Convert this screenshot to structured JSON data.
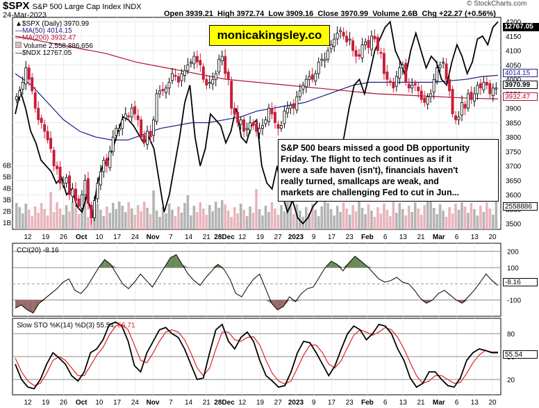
{
  "header": {
    "symbol": "$SPX",
    "name": "S&P 500 Large Cap Index  INDX",
    "date": "24-Mar-2023",
    "ohlc": "Open 3939.21  High 3972.74  Low 3909.16  Close 3970.99  Volume 2.6B  Chg +22.27 (+0.56%)",
    "watermark": "© StockCharts.com",
    "triangle": "▲"
  },
  "legend": [
    {
      "text": "$SPX (Daily) 3970.99",
      "color": "#000000"
    },
    {
      "text": "MA(50) 4014.15",
      "color": "#1a1a8c"
    },
    {
      "text": "MA(200) 3932.47",
      "color": "#b01030"
    },
    {
      "text": "Volume 2,558,886,656",
      "color": "#000000"
    },
    {
      "text": "$NDX 12767.05",
      "color": "#000000"
    }
  ],
  "brand": "monicakingsley.co",
  "annotation": "S&P 500 bears missed a good DB opportunity Friday. The flight to tech continues as if it were a safe haven (isn't), financials haven't really turned, smallcaps are weak, and markets are challenging Fed to cut in Jun...",
  "annotation_lines": [
    "S&P 500 bears missed a good DB opportunity",
    "Friday. The flight to tech continues as if it",
    "were a safe haven (isn't), financials haven't",
    "really turned, smallcaps are weak, and",
    "markets are challenging Fed to cut in Jun..."
  ],
  "right_tags": {
    "ndx": {
      "text": "12767.05",
      "color": "#000000"
    },
    "ma50": {
      "text": "4014.15",
      "color": "#1a1a8c"
    },
    "close": {
      "text": "3970.99",
      "color": "#000000"
    },
    "ma200": {
      "text": "3932.47",
      "color": "#b01030"
    },
    "volume": {
      "text": "2558886",
      "color": "#000000"
    }
  },
  "colors": {
    "up": "#000000",
    "down": "#c81e3a",
    "ma50": "#1a1a8c",
    "ma200": "#b01030",
    "vol_up": "#b4b4b4",
    "vol_down": "#e8b4bc",
    "cci_fill": "#6a8a5a",
    "cci_neg": "#9a6a6a",
    "sto_k": "#000000",
    "sto_d": "#e02020"
  },
  "x_axis": [
    "12",
    "19",
    "26",
    "Oct",
    "10",
    "17",
    "24",
    "Nov",
    "7",
    "14",
    "21",
    "28Dec",
    "12",
    "19",
    "27",
    "2023",
    "9",
    "17",
    "23",
    "Feb",
    "6",
    "13",
    "21",
    "Mar",
    "6",
    "13",
    "20"
  ],
  "chart_data": [
    {
      "type": "candlestick",
      "title": "$SPX S&P 500 Large Cap Index",
      "y_ticks": [
        3500,
        3550,
        3600,
        3650,
        3700,
        3750,
        3800,
        3850,
        3900,
        3950,
        4000,
        4050,
        4100,
        4150,
        4200
      ],
      "y_tick_labels": [
        "3500",
        "3550",
        "3600",
        "3650",
        "3700",
        "3750",
        "3800",
        "3850",
        "3900",
        "3950",
        "4000",
        "4050",
        "4100",
        "4150",
        "4200"
      ],
      "ylim": [
        3480,
        4215
      ],
      "volume_ticks": [
        "1B",
        "2B",
        "3B",
        "4B",
        "5B",
        "6B"
      ],
      "series": [
        {
          "name": "$SPX close",
          "values": [
            3940,
            3960,
            3990,
            4040,
            4000,
            3960,
            3900,
            3860,
            3850,
            3820,
            3790,
            3760,
            3700,
            3690,
            3640,
            3640,
            3660,
            3600,
            3620,
            3580,
            3560,
            3600,
            3650,
            3570,
            3520,
            3580,
            3640,
            3680,
            3720,
            3700,
            3750,
            3800,
            3830,
            3830,
            3860,
            3880,
            3870,
            3900,
            3880,
            3860,
            3800,
            3780,
            3820,
            3800,
            3860,
            3950,
            3960,
            3960,
            3970,
            3990,
            4020,
            4010,
            3990,
            4020,
            4030,
            4050,
            4060,
            4080,
            4060,
            4050,
            4000,
            3980,
            3990,
            4000,
            4020,
            4070,
            4080,
            4020,
            4000,
            3900,
            3880,
            3850,
            3860,
            3820,
            3830,
            3850,
            3840,
            3820,
            3830,
            3840,
            3860,
            3900,
            3880,
            3850,
            3830,
            3840,
            3890,
            3900,
            3910,
            3900,
            3940,
            3960,
            3980,
            4000,
            4010,
            4000,
            4020,
            4060,
            4070,
            4070,
            4100,
            4120,
            4140,
            4160,
            4170,
            4150,
            4130,
            4140,
            4100,
            4080,
            4080,
            4120,
            4130,
            4110,
            4150,
            4140,
            4100,
            4090,
            4020,
            4000,
            3990,
            3970,
            4010,
            4040,
            4050,
            3990,
            3970,
            3980,
            3980,
            3960,
            3930,
            3920,
            3940,
            3950,
            4000,
            4040,
            4050,
            4060,
            4000,
            3960,
            3880,
            3860,
            3870,
            3920,
            3900,
            3950,
            3930,
            3950,
            3980,
            3970,
            3990,
            3980,
            3950,
            3970,
            3970
          ]
        },
        {
          "name": "MA(50)",
          "values": [
            4020,
            3980,
            3920,
            3860,
            3820,
            3800,
            3790,
            3790,
            3810,
            3830,
            3840,
            3850,
            3850,
            3860,
            3870,
            3890,
            3900,
            3910,
            3920,
            3940,
            3960,
            3980,
            3990,
            3990,
            3990,
            3990,
            3990,
            3995,
            4000,
            4010,
            4014
          ]
        },
        {
          "name": "MA(200)",
          "values": [
            4150,
            4130,
            4110,
            4090,
            4060,
            4040,
            4020,
            4000,
            3990,
            3980,
            3970,
            3960,
            3950,
            3945,
            3940,
            3935,
            3932
          ]
        },
        {
          "name": "$NDX",
          "values": [
            3880,
            3960,
            3900,
            3820,
            3780,
            3720,
            3700,
            3680,
            3640,
            3660,
            3600,
            3620,
            3560,
            3540,
            3600,
            3520,
            3640,
            3700,
            3720,
            3760,
            3820,
            3870,
            3860,
            3840,
            3810,
            3780,
            3800,
            3760,
            3650,
            3540,
            3600,
            3700,
            3800,
            3920,
            3980,
            3800,
            3700,
            3760,
            3880,
            3860,
            3840,
            3780,
            3820,
            3900,
            3800,
            3780,
            3840,
            3860,
            3700,
            3640,
            3620,
            3700,
            3600,
            3540,
            3580,
            3520,
            3500,
            3520,
            3560,
            3580,
            3640,
            3720,
            3740,
            3720,
            3800,
            3900,
            3980,
            4000,
            3950,
            4020,
            4100,
            4140,
            4180,
            4200,
            4100,
            4060,
            4010,
            4100,
            4160,
            4100,
            4040,
            4080,
            4060,
            4000,
            3980,
            4060,
            4120,
            4080,
            4020,
            4060,
            4140,
            4150,
            4120,
            4180,
            4200
          ]
        }
      ]
    },
    {
      "type": "line",
      "title": "CCI(20) -8.16",
      "y_ticks": [
        -100,
        100,
        200
      ],
      "ylim": [
        -200,
        250
      ],
      "last_value": "-8.16",
      "series": [
        {
          "name": "CCI(20)",
          "values": [
            -150,
            -130,
            -160,
            -180,
            -120,
            -90,
            -60,
            -30,
            10,
            30,
            -40,
            -60,
            -20,
            40,
            100,
            150,
            120,
            60,
            0,
            -30,
            10,
            60,
            20,
            -20,
            40,
            100,
            160,
            180,
            120,
            60,
            20,
            -10,
            40,
            80,
            120,
            90,
            30,
            -60,
            -80,
            -20,
            30,
            60,
            -30,
            -120,
            -160,
            -140,
            -80,
            -110,
            -60,
            -30,
            -20,
            40,
            100,
            140,
            120,
            80,
            130,
            170,
            140,
            110,
            70,
            30,
            10,
            20,
            40,
            10,
            0,
            -40,
            -90,
            -120,
            -100,
            -60,
            -40,
            -70,
            -100,
            -120,
            -80,
            -40,
            10,
            60,
            20,
            -10
          ]
        }
      ]
    },
    {
      "type": "line",
      "title": "Slow STO %K(14) %D(3) 55.54, 56.71",
      "y_ticks": [
        20,
        50,
        80
      ],
      "ylim": [
        0,
        100
      ],
      "last_values": [
        "55.54",
        "56.71"
      ],
      "series": [
        {
          "name": "%K(14)",
          "values": [
            40,
            20,
            10,
            8,
            20,
            40,
            55,
            48,
            40,
            25,
            18,
            30,
            55,
            60,
            72,
            92,
            95,
            90,
            70,
            38,
            30,
            55,
            70,
            85,
            88,
            80,
            75,
            60,
            40,
            20,
            22,
            55,
            85,
            92,
            70,
            60,
            75,
            82,
            70,
            45,
            25,
            18,
            10,
            12,
            30,
            55,
            70,
            68,
            55,
            40,
            25,
            38,
            60,
            80,
            90,
            85,
            72,
            80,
            92,
            90,
            80,
            60,
            45,
            22,
            10,
            15,
            30,
            30,
            20,
            12,
            10,
            22,
            45,
            55,
            60,
            58,
            55,
            55
          ]
        },
        {
          "name": "%D(3)",
          "values": [
            48,
            30,
            18,
            12,
            15,
            28,
            45,
            50,
            45,
            35,
            25,
            25,
            38,
            52,
            62,
            78,
            90,
            92,
            85,
            65,
            45,
            42,
            55,
            70,
            82,
            85,
            82,
            72,
            55,
            35,
            25,
            35,
            60,
            82,
            82,
            72,
            70,
            75,
            76,
            65,
            45,
            28,
            18,
            14,
            18,
            35,
            52,
            65,
            65,
            55,
            40,
            35,
            45,
            62,
            78,
            85,
            82,
            78,
            82,
            88,
            85,
            75,
            60,
            42,
            25,
            15,
            18,
            25,
            25,
            20,
            15,
            16,
            28,
            42,
            52,
            58,
            56,
            56
          ]
        }
      ]
    }
  ]
}
